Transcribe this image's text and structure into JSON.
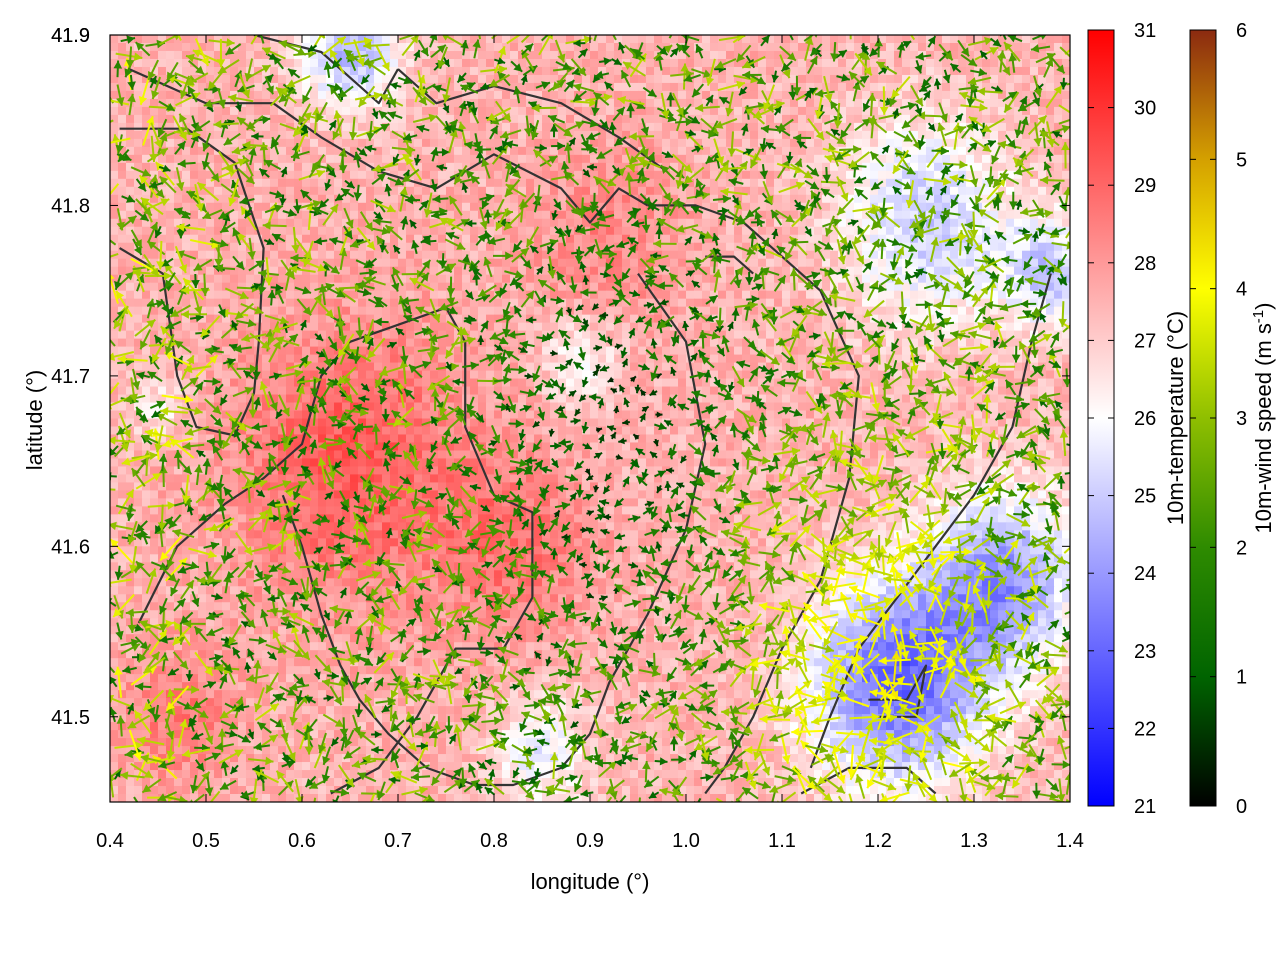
{
  "chart_data": {
    "type": "heatmap",
    "title": "",
    "xlabel": "longitude (°)",
    "ylabel": "latitude (°)",
    "xlim": [
      0.4,
      1.4
    ],
    "ylim": [
      41.45,
      41.9
    ],
    "xticks": [
      "0.4",
      "0.5",
      "0.6",
      "0.7",
      "0.8",
      "0.9",
      "1.0",
      "1.1",
      "1.2",
      "1.3",
      "1.4"
    ],
    "yticks": [
      "41.5",
      "41.6",
      "41.7",
      "41.8",
      "41.9"
    ],
    "colorbars": [
      {
        "name": "temperature",
        "label": "10m-temperature (°C)",
        "range": [
          21,
          31
        ],
        "ticks": [
          "21",
          "22",
          "23",
          "24",
          "25",
          "26",
          "27",
          "28",
          "29",
          "30",
          "31"
        ],
        "colors": [
          "#0000ff",
          "#ffffff",
          "#ff0000"
        ]
      },
      {
        "name": "wind",
        "label_main": "10m-wind speed (m s",
        "label_sup": "-1",
        "label_end": ")",
        "range": [
          0,
          6
        ],
        "ticks": [
          "0",
          "1",
          "2",
          "3",
          "4",
          "5",
          "6"
        ],
        "colors": [
          "#000000",
          "#006400",
          "#2e8b00",
          "#8fbf00",
          "#ffff00",
          "#d4a000",
          "#8b2a10"
        ]
      }
    ],
    "temperature_field": {
      "base": 27.5,
      "cool_spots": [
        {
          "lon": 1.22,
          "lat": 41.52,
          "depth": 4.5,
          "radius": 0.09
        },
        {
          "lon": 1.33,
          "lat": 41.58,
          "depth": 3.5,
          "radius": 0.08
        },
        {
          "lon": 0.65,
          "lat": 41.89,
          "depth": 3.0,
          "radius": 0.05
        },
        {
          "lon": 1.25,
          "lat": 41.79,
          "depth": 2.5,
          "radius": 0.09
        },
        {
          "lon": 1.38,
          "lat": 41.76,
          "depth": 2.5,
          "radius": 0.05
        },
        {
          "lon": 0.89,
          "lat": 41.71,
          "depth": 1.5,
          "radius": 0.04
        },
        {
          "lon": 0.85,
          "lat": 41.48,
          "depth": 1.8,
          "radius": 0.05
        },
        {
          "lon": 0.45,
          "lat": 41.68,
          "depth": 1.2,
          "radius": 0.03
        }
      ],
      "warm_spots": [
        {
          "lon": 0.65,
          "lat": 41.65,
          "height": 1.8,
          "radius": 0.12
        },
        {
          "lon": 0.82,
          "lat": 41.6,
          "height": 1.3,
          "radius": 0.08
        },
        {
          "lon": 0.47,
          "lat": 41.5,
          "height": 1.2,
          "radius": 0.06
        },
        {
          "lon": 0.92,
          "lat": 41.78,
          "height": 0.9,
          "radius": 0.08
        }
      ]
    },
    "wind_field": {
      "typical_speed": 2.2,
      "calm_zone": {
        "lon": 0.92,
        "lat": 41.66,
        "radius": 0.12
      },
      "strong_zone": {
        "lon": 1.2,
        "lat": 41.53,
        "speed": 4.5,
        "radius": 0.13
      }
    },
    "contours": [
      [
        [
          0.41,
          41.845
        ],
        [
          0.48,
          41.845
        ],
        [
          0.53,
          41.825
        ],
        [
          0.56,
          41.775
        ],
        [
          0.555,
          41.72
        ],
        [
          0.55,
          41.69
        ],
        [
          0.53,
          41.665
        ],
        [
          0.49,
          41.67
        ],
        [
          0.47,
          41.7
        ],
        [
          0.455,
          41.76
        ],
        [
          0.41,
          41.775
        ]
      ],
      [
        [
          0.43,
          41.555
        ],
        [
          0.47,
          41.6
        ],
        [
          0.52,
          41.625
        ],
        [
          0.56,
          41.64
        ],
        [
          0.6,
          41.66
        ],
        [
          0.62,
          41.7
        ],
        [
          0.65,
          41.72
        ],
        [
          0.7,
          41.73
        ],
        [
          0.75,
          41.74
        ],
        [
          0.77,
          41.72
        ],
        [
          0.77,
          41.67
        ],
        [
          0.8,
          41.63
        ],
        [
          0.84,
          41.62
        ],
        [
          0.84,
          41.57
        ],
        [
          0.81,
          41.54
        ],
        [
          0.76,
          41.54
        ],
        [
          0.72,
          41.5
        ],
        [
          0.68,
          41.47
        ],
        [
          0.63,
          41.455
        ]
      ],
      [
        [
          0.42,
          41.88
        ],
        [
          0.5,
          41.86
        ],
        [
          0.57,
          41.86
        ],
        [
          0.62,
          41.84
        ],
        [
          0.68,
          41.82
        ],
        [
          0.74,
          41.81
        ],
        [
          0.8,
          41.83
        ],
        [
          0.87,
          41.81
        ],
        [
          0.9,
          41.79
        ],
        [
          0.93,
          41.81
        ],
        [
          0.96,
          41.8
        ]
      ],
      [
        [
          0.96,
          41.8
        ],
        [
          1.01,
          41.8
        ],
        [
          1.06,
          41.79
        ],
        [
          1.1,
          41.77
        ],
        [
          1.14,
          41.75
        ],
        [
          1.18,
          41.7
        ],
        [
          1.17,
          41.64
        ],
        [
          1.14,
          41.58
        ],
        [
          1.1,
          41.54
        ],
        [
          1.07,
          41.5
        ],
        [
          1.04,
          41.47
        ],
        [
          1.02,
          41.455
        ]
      ],
      [
        [
          0.95,
          41.76
        ],
        [
          1.0,
          41.72
        ],
        [
          1.02,
          41.66
        ],
        [
          1.0,
          41.61
        ],
        [
          0.96,
          41.56
        ],
        [
          0.92,
          41.52
        ],
        [
          0.9,
          41.49
        ],
        [
          0.87,
          41.47
        ],
        [
          0.82,
          41.46
        ],
        [
          0.78,
          41.46
        ],
        [
          0.73,
          41.47
        ],
        [
          0.69,
          41.49
        ],
        [
          0.66,
          41.51
        ],
        [
          0.64,
          41.53
        ],
        [
          0.62,
          41.56
        ],
        [
          0.6,
          41.6
        ],
        [
          0.58,
          41.63
        ]
      ],
      [
        [
          0.7,
          41.88
        ],
        [
          0.74,
          41.86
        ],
        [
          0.8,
          41.87
        ],
        [
          0.87,
          41.86
        ],
        [
          0.93,
          41.84
        ],
        [
          0.98,
          41.82
        ]
      ],
      [
        [
          1.12,
          41.455
        ],
        [
          1.17,
          41.47
        ],
        [
          1.23,
          41.47
        ],
        [
          1.26,
          41.455
        ]
      ],
      [
        [
          1.38,
          41.76
        ],
        [
          1.36,
          41.72
        ],
        [
          1.34,
          41.67
        ],
        [
          1.3,
          41.63
        ],
        [
          1.26,
          41.6
        ],
        [
          1.22,
          41.57
        ],
        [
          1.18,
          41.54
        ],
        [
          1.15,
          41.5
        ],
        [
          1.13,
          41.47
        ]
      ],
      [
        [
          0.55,
          41.9
        ],
        [
          0.62,
          41.89
        ],
        [
          0.66,
          41.87
        ],
        [
          0.68,
          41.86
        ],
        [
          0.7,
          41.88
        ]
      ],
      [
        [
          1.19,
          41.51
        ],
        [
          1.23,
          41.51
        ],
        [
          1.25,
          41.53
        ],
        [
          1.24,
          41.5
        ],
        [
          1.2,
          41.5
        ]
      ],
      [
        [
          1.02,
          41.77
        ],
        [
          1.05,
          41.77
        ],
        [
          1.07,
          41.76
        ]
      ]
    ]
  }
}
